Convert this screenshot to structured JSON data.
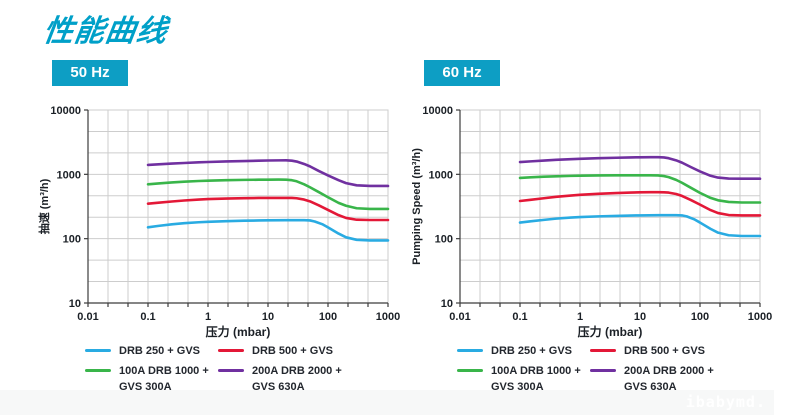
{
  "title": "性能曲线",
  "colors": {
    "accent": "#00a0c8",
    "badge_bg": "#0d9ec4",
    "grid": "#cdcdcd",
    "axis": "#3c3c3c",
    "tick_text": "#1b2026",
    "footer_bg": "#f7f8f8",
    "watermark_text": "#ffffff",
    "series_cyan": "#29abe2",
    "series_red": "#e31837",
    "series_green": "#39b54a",
    "series_purple": "#7030a0"
  },
  "legend": {
    "items": [
      {
        "label": "DRB 250 + GVS",
        "color": "#29abe2"
      },
      {
        "label": "DRB 500 + GVS",
        "color": "#e31837"
      },
      {
        "label": "100A DRB 1000 +\nGVS 300A",
        "color": "#39b54a"
      },
      {
        "label": "200A DRB 2000 +\nGVS 630A",
        "color": "#7030a0"
      }
    ]
  },
  "footer": {
    "watermark": "ibabymd."
  },
  "chart_data": [
    {
      "id": "50hz",
      "type": "line",
      "badge": "50 Hz",
      "xlabel": "压力 (mbar)",
      "ylabel": "抽速 (m³/h)",
      "xscale": "log",
      "yscale": "log",
      "xlim": [
        0.01,
        1000
      ],
      "ylim": [
        10,
        10000
      ],
      "xtick_labels": [
        "0.01",
        "0.1",
        "1",
        "10",
        "100",
        "1000"
      ],
      "ytick_labels": [
        "10",
        "100",
        "1000",
        "10000"
      ],
      "grid": true,
      "grid_divisions_per_decade": 3,
      "legend_position": "below",
      "series": [
        {
          "name": "DRB 250 + GVS",
          "color": "#29abe2",
          "x": [
            0.1,
            0.15,
            0.25,
            0.4,
            0.7,
            1,
            2,
            4,
            7,
            10,
            20,
            30,
            40,
            50,
            60,
            80,
            100,
            150,
            200,
            300,
            500,
            700,
            1000
          ],
          "y": [
            150,
            158,
            167,
            174,
            180,
            183,
            187,
            190,
            192,
            193,
            194,
            194,
            194,
            192,
            185,
            168,
            150,
            120,
            105,
            96,
            94,
            94,
            94
          ]
        },
        {
          "name": "DRB 500 + GVS",
          "color": "#e31837",
          "x": [
            0.1,
            0.15,
            0.25,
            0.4,
            0.7,
            1,
            2,
            4,
            7,
            10,
            15,
            20,
            25,
            30,
            40,
            50,
            70,
            100,
            150,
            200,
            300,
            500,
            1000
          ],
          "y": [
            350,
            362,
            378,
            392,
            405,
            412,
            420,
            426,
            429,
            430,
            430,
            430,
            429,
            425,
            405,
            380,
            330,
            280,
            232,
            210,
            197,
            195,
            195
          ]
        },
        {
          "name": "100A DRB 1000 + GVS 300A",
          "color": "#39b54a",
          "x": [
            0.1,
            0.15,
            0.25,
            0.4,
            0.7,
            1,
            2,
            4,
            7,
            10,
            15,
            20,
            25,
            30,
            40,
            50,
            70,
            100,
            150,
            200,
            300,
            500,
            1000
          ],
          "y": [
            700,
            722,
            748,
            768,
            788,
            798,
            812,
            820,
            825,
            827,
            828,
            825,
            810,
            780,
            700,
            630,
            530,
            440,
            360,
            325,
            297,
            290,
            290
          ]
        },
        {
          "name": "200A DRB 2000 + GVS 630A",
          "color": "#7030a0",
          "x": [
            0.1,
            0.15,
            0.25,
            0.4,
            0.7,
            1,
            2,
            4,
            7,
            10,
            15,
            20,
            25,
            30,
            40,
            50,
            70,
            100,
            150,
            200,
            300,
            500,
            1000
          ],
          "y": [
            1400,
            1430,
            1468,
            1500,
            1535,
            1555,
            1585,
            1610,
            1630,
            1640,
            1648,
            1650,
            1630,
            1580,
            1450,
            1330,
            1130,
            960,
            810,
            730,
            675,
            660,
            660
          ]
        }
      ]
    },
    {
      "id": "60hz",
      "type": "line",
      "badge": "60 Hz",
      "xlabel": "压力 (mbar)",
      "ylabel": "Pumping Speed (m³/h)",
      "xscale": "log",
      "yscale": "log",
      "xlim": [
        0.01,
        1000
      ],
      "ylim": [
        10,
        10000
      ],
      "xtick_labels": [
        "0.01",
        "0.1",
        "1",
        "10",
        "100",
        "1000"
      ],
      "ytick_labels": [
        "10",
        "100",
        "1000",
        "10000"
      ],
      "grid": true,
      "grid_divisions_per_decade": 3,
      "legend_position": "below",
      "series": [
        {
          "name": "DRB 250 + GVS",
          "color": "#29abe2",
          "x": [
            0.1,
            0.15,
            0.25,
            0.4,
            0.7,
            1,
            2,
            4,
            7,
            10,
            20,
            30,
            40,
            50,
            60,
            80,
            100,
            150,
            200,
            300,
            500,
            700,
            1000
          ],
          "y": [
            178,
            186,
            196,
            205,
            213,
            217,
            222,
            226,
            229,
            230,
            232,
            232,
            232,
            230,
            222,
            200,
            178,
            142,
            124,
            113,
            110,
            110,
            110
          ]
        },
        {
          "name": "DRB 500 + GVS",
          "color": "#e31837",
          "x": [
            0.1,
            0.15,
            0.25,
            0.4,
            0.7,
            1,
            2,
            4,
            7,
            10,
            15,
            20,
            25,
            30,
            40,
            50,
            70,
            100,
            150,
            200,
            300,
            500,
            1000
          ],
          "y": [
            385,
            402,
            425,
            447,
            468,
            480,
            498,
            512,
            520,
            525,
            528,
            528,
            526,
            520,
            495,
            462,
            400,
            338,
            278,
            250,
            233,
            230,
            230
          ]
        },
        {
          "name": "100A DRB 1000 + GVS 300A",
          "color": "#39b54a",
          "x": [
            0.1,
            0.15,
            0.25,
            0.4,
            0.7,
            1,
            2,
            4,
            7,
            10,
            15,
            20,
            25,
            30,
            40,
            50,
            70,
            100,
            150,
            200,
            300,
            500,
            1000
          ],
          "y": [
            880,
            898,
            918,
            933,
            946,
            952,
            960,
            965,
            967,
            967,
            966,
            960,
            940,
            905,
            820,
            740,
            620,
            515,
            430,
            395,
            372,
            365,
            365
          ]
        },
        {
          "name": "200A DRB 2000 + GVS 630A",
          "color": "#7030a0",
          "x": [
            0.1,
            0.15,
            0.25,
            0.4,
            0.7,
            1,
            2,
            4,
            7,
            10,
            15,
            20,
            25,
            30,
            40,
            50,
            70,
            100,
            150,
            200,
            300,
            500,
            1000
          ],
          "y": [
            1550,
            1590,
            1638,
            1680,
            1720,
            1745,
            1780,
            1810,
            1832,
            1842,
            1850,
            1850,
            1830,
            1780,
            1650,
            1520,
            1300,
            1110,
            950,
            890,
            860,
            855,
            855
          ]
        }
      ]
    }
  ]
}
